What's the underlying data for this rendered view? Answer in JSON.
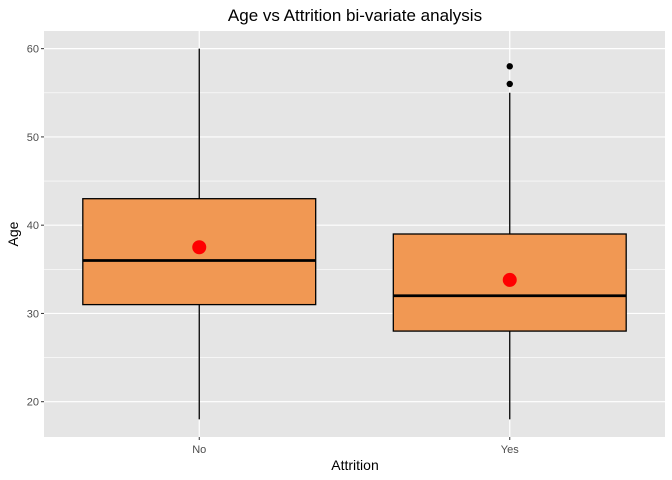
{
  "chart_data": {
    "type": "box",
    "title": "Age vs Attrition bi-variate analysis",
    "xlabel": "Attrition",
    "ylabel": "Age",
    "categories": [
      "No",
      "Yes"
    ],
    "ylim": [
      16,
      62
    ],
    "yticks": [
      20,
      30,
      40,
      50,
      60
    ],
    "grid": true,
    "boxes": [
      {
        "category": "No",
        "whisker_low": 18,
        "q1": 31,
        "median": 36,
        "q3": 43,
        "whisker_high": 60,
        "mean": 37.5,
        "outliers": []
      },
      {
        "category": "Yes",
        "whisker_low": 18,
        "q1": 28,
        "median": 32,
        "q3": 39,
        "whisker_high": 55,
        "mean": 33.8,
        "outliers": [
          56,
          58
        ]
      }
    ],
    "colors": {
      "panel": "#e5e5e5",
      "grid": "#ffffff",
      "box_fill": "#f19853",
      "box_stroke": "#000000",
      "mean_point": "#ff0000",
      "outlier": "#000000"
    }
  }
}
